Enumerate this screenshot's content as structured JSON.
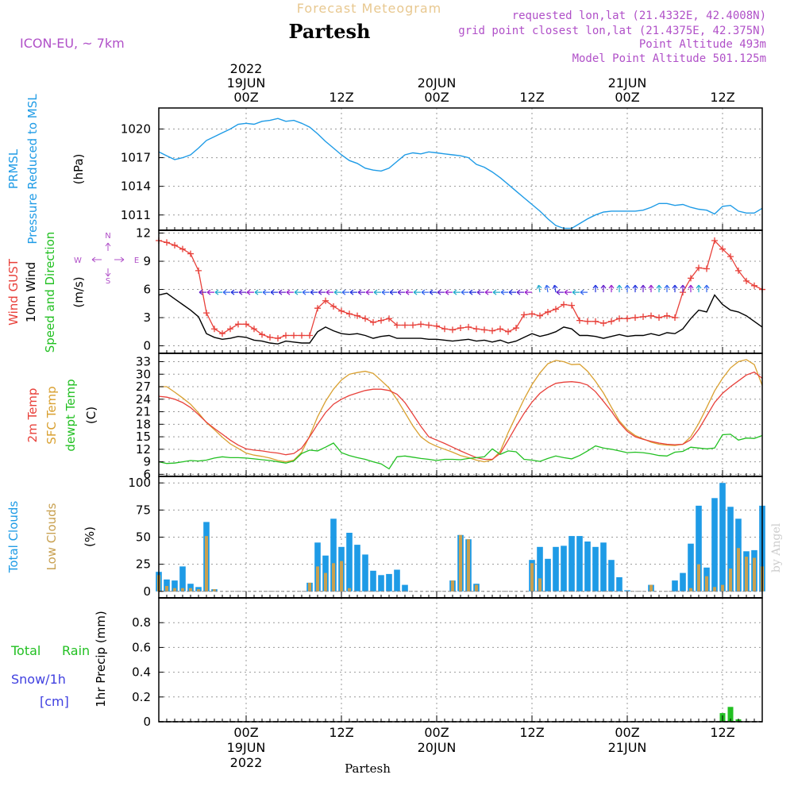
{
  "header": {
    "title": "Partesh",
    "subtitle": "Forecast Meteogram",
    "model": "ICON-EU, ~ 7km",
    "requested": "requested lon,lat (21.4332E, 42.4008N)",
    "grid": "grid point closest lon,lat (21.4375E, 42.375N)",
    "point_alt": "Point Altitude 493m",
    "model_alt": "Model Point Altitude 501.125m"
  },
  "footer": {
    "location": "Partesh",
    "credit": "by Angel"
  },
  "time_axis": {
    "top_year": "2022",
    "bottom_year": "2022",
    "date_labels": [
      "19JUN",
      "20JUN",
      "21JUN"
    ],
    "hour_labels": [
      "00Z",
      "12Z",
      "00Z",
      "12Z",
      "00Z",
      "12Z"
    ],
    "hour_positions": [
      24,
      36,
      48,
      60,
      72,
      84
    ],
    "date_positions": [
      24,
      48,
      72
    ],
    "t_start": 13,
    "t_end": 89
  },
  "panels": {
    "pressure": {
      "label1": "PRMSL",
      "label2": "Pressure Reduced to MSL",
      "unit": "(hPa)",
      "color": "#1e9be6"
    },
    "wind": {
      "gust": "Wind GUST",
      "wind10": "10m Wind",
      "speed_dir": "Speed and Direction",
      "unit": "(m/s)",
      "compass_n": "N",
      "compass_s": "S",
      "compass_w": "W",
      "compass_e": "E",
      "gust_color": "#e8403a",
      "wind_color": "#000000"
    },
    "temp": {
      "t2m": "2m Temp",
      "sfc": "SFC Temp",
      "dewpt": "dewpt Temp",
      "unit": "(C)",
      "t2m_color": "#e8403a",
      "sfc_color": "#d9a030",
      "dewpt_color": "#22c022"
    },
    "clouds": {
      "total": "Total Clouds",
      "low": "Low Clouds",
      "unit": "(%)",
      "total_color": "#1e9be6",
      "low_color": "#c8a050"
    },
    "precip": {
      "total_rain": "Total",
      "rain": "Rain",
      "snow": "Snow/1h",
      "cm": "[cm]",
      "unit": "1hr Precip (mm)",
      "rain_color": "#22c022",
      "snow_color": "#4040e0"
    }
  },
  "chart_data": [
    {
      "type": "line",
      "name": "pressure",
      "ylim": [
        1009.4,
        1022.2
      ],
      "yticks": [
        1011,
        1014,
        1017,
        1020
      ],
      "x": [
        13,
        14,
        15,
        16,
        17,
        18,
        19,
        20,
        21,
        22,
        23,
        24,
        25,
        26,
        27,
        28,
        29,
        30,
        31,
        32,
        33,
        34,
        35,
        36,
        37,
        38,
        39,
        40,
        41,
        42,
        43,
        44,
        45,
        46,
        47,
        48,
        49,
        50,
        51,
        52,
        53,
        54,
        55,
        56,
        57,
        58,
        59,
        60,
        61,
        62,
        63,
        64,
        65,
        66,
        67,
        68,
        69,
        70,
        71,
        72,
        73,
        74,
        75,
        76,
        77,
        78,
        79,
        80,
        81,
        82,
        83,
        84,
        85,
        86,
        87,
        88,
        89
      ],
      "series": [
        {
          "values": [
            1017.6,
            1017.2,
            1016.8,
            1017.0,
            1017.3,
            1018.0,
            1018.8,
            1019.2,
            1019.6,
            1020.0,
            1020.5,
            1020.6,
            1020.5,
            1020.8,
            1020.9,
            1021.1,
            1020.8,
            1020.9,
            1020.6,
            1020.2,
            1019.5,
            1018.7,
            1018.0,
            1017.3,
            1016.7,
            1016.4,
            1015.9,
            1015.7,
            1015.6,
            1015.9,
            1016.6,
            1017.3,
            1017.5,
            1017.4,
            1017.6,
            1017.5,
            1017.4,
            1017.3,
            1017.2,
            1017.0,
            1016.3,
            1016.0,
            1015.5,
            1014.9,
            1014.2,
            1013.5,
            1012.8,
            1012.1,
            1011.4,
            1010.6,
            1009.9,
            1009.6,
            1009.6,
            1010.1,
            1010.6,
            1011.0,
            1011.3,
            1011.4,
            1011.4,
            1011.4,
            1011.4,
            1011.5,
            1011.8,
            1012.2,
            1012.2,
            1012.0,
            1012.1,
            1011.8,
            1011.6,
            1011.5,
            1011.1,
            1011.9,
            1012.0,
            1011.4,
            1011.2,
            1011.2,
            1011.7
          ]
        }
      ]
    },
    {
      "type": "line",
      "name": "wind",
      "ylim": [
        -0.8,
        12.3
      ],
      "yticks": [
        0,
        3,
        6,
        9,
        12
      ],
      "x": [
        13,
        14,
        15,
        16,
        17,
        18,
        19,
        20,
        21,
        22,
        23,
        24,
        25,
        26,
        27,
        28,
        29,
        30,
        31,
        32,
        33,
        34,
        35,
        36,
        37,
        38,
        39,
        40,
        41,
        42,
        43,
        44,
        45,
        46,
        47,
        48,
        49,
        50,
        51,
        52,
        53,
        54,
        55,
        56,
        57,
        58,
        59,
        60,
        61,
        62,
        63,
        64,
        65,
        66,
        67,
        68,
        69,
        70,
        71,
        72,
        73,
        74,
        75,
        76,
        77,
        78,
        79,
        80,
        81,
        82,
        83,
        84,
        85,
        86,
        87,
        88,
        89
      ],
      "series": [
        {
          "name": "Wind GUST",
          "values": [
            11.2,
            11.0,
            10.7,
            10.3,
            9.8,
            8.0,
            3.5,
            1.8,
            1.3,
            1.8,
            2.3,
            2.3,
            1.8,
            1.2,
            0.9,
            0.8,
            1.1,
            1.1,
            1.1,
            1.1,
            4.0,
            4.8,
            4.2,
            3.7,
            3.4,
            3.2,
            2.9,
            2.5,
            2.7,
            2.9,
            2.2,
            2.2,
            2.2,
            2.3,
            2.2,
            2.1,
            1.8,
            1.7,
            1.9,
            2.0,
            1.8,
            1.7,
            1.6,
            1.8,
            1.5,
            1.9,
            3.3,
            3.4,
            3.2,
            3.6,
            3.9,
            4.4,
            4.3,
            2.7,
            2.6,
            2.6,
            2.4,
            2.6,
            2.9,
            2.9,
            3.0,
            3.1,
            3.2,
            3.0,
            3.2,
            3.0,
            5.7,
            7.2,
            8.3,
            8.2,
            11.2,
            10.3,
            9.5,
            8.0,
            6.9,
            6.4,
            6.0
          ]
        },
        {
          "name": "10m Wind",
          "values": [
            5.4,
            5.6,
            5.0,
            4.4,
            3.8,
            3.1,
            1.3,
            0.9,
            0.7,
            0.8,
            1.0,
            0.9,
            0.6,
            0.5,
            0.3,
            0.2,
            0.5,
            0.4,
            0.3,
            0.3,
            1.5,
            2.0,
            1.6,
            1.3,
            1.2,
            1.3,
            1.1,
            0.8,
            1.0,
            1.1,
            0.8,
            0.8,
            0.8,
            0.8,
            0.7,
            0.7,
            0.6,
            0.5,
            0.6,
            0.7,
            0.5,
            0.6,
            0.4,
            0.6,
            0.3,
            0.5,
            0.9,
            1.3,
            1.0,
            1.2,
            1.5,
            2.0,
            1.8,
            1.1,
            1.1,
            1.0,
            0.8,
            1.0,
            1.2,
            1.0,
            1.1,
            1.1,
            1.3,
            1.1,
            1.4,
            1.3,
            1.8,
            2.9,
            3.8,
            3.6,
            5.4,
            4.4,
            3.8,
            3.6,
            3.2,
            2.6,
            2.0
          ]
        }
      ]
    },
    {
      "type": "line",
      "name": "temperature",
      "ylim": [
        5.5,
        35
      ],
      "yticks": [
        6,
        9,
        12,
        15,
        18,
        21,
        24,
        27,
        30,
        33
      ],
      "x": [
        13,
        14,
        15,
        16,
        17,
        18,
        19,
        20,
        21,
        22,
        23,
        24,
        25,
        26,
        27,
        28,
        29,
        30,
        31,
        32,
        33,
        34,
        35,
        36,
        37,
        38,
        39,
        40,
        41,
        42,
        43,
        44,
        45,
        46,
        47,
        48,
        49,
        50,
        51,
        52,
        53,
        54,
        55,
        56,
        57,
        58,
        59,
        60,
        61,
        62,
        63,
        64,
        65,
        66,
        67,
        68,
        69,
        70,
        71,
        72,
        73,
        74,
        75,
        76,
        77,
        78,
        79,
        80,
        81,
        82,
        83,
        84,
        85,
        86,
        87,
        88,
        89
      ],
      "series": [
        {
          "name": "2m Temp",
          "values": [
            24.7,
            24.5,
            24.0,
            23.2,
            22.0,
            20.3,
            18.5,
            17.0,
            15.6,
            14.2,
            13.0,
            12.1,
            11.8,
            11.6,
            11.3,
            11.1,
            10.7,
            11.0,
            12.3,
            15.0,
            18.0,
            20.8,
            22.8,
            24.0,
            24.9,
            25.5,
            26.1,
            26.4,
            26.4,
            26.1,
            25.2,
            23.2,
            20.4,
            17.5,
            15.0,
            14.2,
            13.4,
            12.5,
            11.6,
            10.8,
            10.0,
            9.6,
            9.6,
            11.0,
            14.2,
            17.5,
            20.6,
            23.3,
            25.4,
            26.8,
            27.8,
            28.1,
            28.2,
            28.0,
            27.4,
            25.8,
            23.5,
            21.1,
            18.4,
            16.3,
            15.0,
            14.4,
            13.9,
            13.5,
            13.2,
            13.1,
            13.2,
            14.3,
            16.8,
            20.0,
            23.2,
            25.4,
            27.0,
            28.4,
            29.8,
            30.5,
            29.0
          ]
        },
        {
          "name": "SFC Temp",
          "values": [
            27.0,
            27.0,
            25.7,
            24.3,
            22.8,
            20.7,
            18.4,
            16.7,
            14.9,
            13.3,
            12.2,
            11.1,
            10.6,
            10.3,
            9.9,
            9.3,
            9.0,
            9.4,
            11.3,
            15.2,
            19.8,
            23.5,
            26.4,
            28.6,
            30.0,
            30.4,
            30.7,
            30.2,
            28.5,
            26.7,
            23.9,
            20.8,
            17.6,
            15.0,
            13.6,
            12.7,
            12.0,
            11.3,
            10.5,
            10.0,
            9.4,
            9.0,
            9.5,
            11.5,
            16.0,
            20.0,
            24.0,
            27.5,
            30.3,
            32.5,
            33.3,
            33.0,
            32.3,
            32.4,
            30.7,
            28.3,
            25.5,
            22.1,
            18.8,
            16.7,
            15.3,
            14.5,
            13.7,
            13.2,
            13.0,
            12.9,
            13.2,
            15.0,
            18.2,
            22.0,
            26.0,
            29.0,
            31.5,
            33.0,
            33.5,
            32.3,
            27.3
          ]
        },
        {
          "name": "dewpt Temp",
          "values": [
            9.0,
            8.6,
            8.7,
            9.0,
            9.3,
            9.2,
            9.4,
            9.9,
            10.2,
            10.0,
            10.0,
            9.9,
            9.7,
            9.5,
            9.3,
            9.0,
            8.7,
            9.2,
            11.0,
            11.8,
            11.6,
            12.5,
            13.5,
            11.2,
            10.5,
            10.0,
            9.6,
            9.0,
            8.5,
            7.3,
            10.2,
            10.4,
            10.1,
            9.8,
            9.6,
            9.3,
            9.6,
            9.6,
            9.5,
            9.8,
            10.0,
            10.2,
            12.1,
            10.8,
            11.6,
            11.4,
            9.6,
            9.4,
            9.1,
            9.8,
            10.4,
            10.0,
            9.7,
            10.5,
            11.6,
            12.8,
            12.3,
            12.0,
            11.6,
            11.2,
            11.3,
            11.2,
            10.9,
            10.5,
            10.4,
            11.3,
            11.5,
            12.5,
            12.3,
            12.1,
            12.3,
            15.5,
            15.6,
            14.2,
            14.7,
            14.6,
            15.3
          ]
        }
      ]
    },
    {
      "type": "bar",
      "name": "clouds",
      "ylim": [
        -6,
        106
      ],
      "yticks": [
        0,
        25,
        50,
        75,
        100
      ],
      "x": [
        13,
        14,
        15,
        16,
        17,
        18,
        19,
        20,
        21,
        22,
        23,
        24,
        25,
        26,
        27,
        28,
        29,
        30,
        31,
        32,
        33,
        34,
        35,
        36,
        37,
        38,
        39,
        40,
        41,
        42,
        43,
        44,
        45,
        46,
        47,
        48,
        49,
        50,
        51,
        52,
        53,
        54,
        55,
        56,
        57,
        58,
        59,
        60,
        61,
        62,
        63,
        64,
        65,
        66,
        67,
        68,
        69,
        70,
        71,
        72,
        73,
        74,
        75,
        76,
        77,
        78,
        79,
        80,
        81,
        82,
        83,
        84,
        85,
        86,
        87,
        88,
        89
      ],
      "series": [
        {
          "name": "Total Clouds",
          "values": [
            18,
            11,
            10,
            23,
            7,
            4,
            64,
            2,
            0,
            0,
            0,
            0,
            0,
            0,
            0,
            0,
            0,
            0,
            0,
            8,
            45,
            33,
            67,
            41,
            54,
            43,
            34,
            19,
            15,
            16,
            20,
            6,
            0,
            0,
            0,
            0,
            0,
            10,
            52,
            48,
            7,
            0,
            0,
            0,
            0,
            0,
            0,
            29,
            41,
            30,
            41,
            42,
            51,
            51,
            46,
            41,
            45,
            29,
            13,
            1,
            0,
            0,
            6,
            0,
            0,
            10,
            17,
            44,
            79,
            22,
            86,
            100,
            78,
            67,
            37,
            38,
            79
          ]
        },
        {
          "name": "Low Clouds",
          "values": [
            15,
            5,
            3,
            3,
            3,
            2,
            51,
            2,
            0,
            0,
            0,
            0,
            0,
            0,
            0,
            0,
            0,
            0,
            0,
            8,
            23,
            17,
            26,
            28,
            3,
            0,
            0,
            0,
            0,
            0,
            0,
            0,
            0,
            0,
            0,
            0,
            0,
            10,
            52,
            48,
            6,
            0,
            0,
            0,
            0,
            0,
            0,
            26,
            12,
            0,
            0,
            0,
            0,
            0,
            0,
            0,
            0,
            0,
            0,
            0,
            0,
            0,
            6,
            0,
            0,
            0,
            0,
            3,
            25,
            14,
            4,
            6,
            21,
            40,
            32,
            31,
            23
          ]
        }
      ]
    },
    {
      "type": "bar",
      "name": "precip",
      "ylim": [
        0,
        1.0
      ],
      "yticks": [
        0,
        0.2,
        0.4,
        0.6,
        0.8
      ],
      "ytick_labels": [
        "0",
        "0.2",
        "0.4",
        "0.6",
        "0.8"
      ],
      "x": [
        84,
        85,
        86
      ],
      "series": [
        {
          "name": "Rain",
          "values": [
            0.07,
            0.12,
            0.02
          ]
        }
      ]
    }
  ]
}
